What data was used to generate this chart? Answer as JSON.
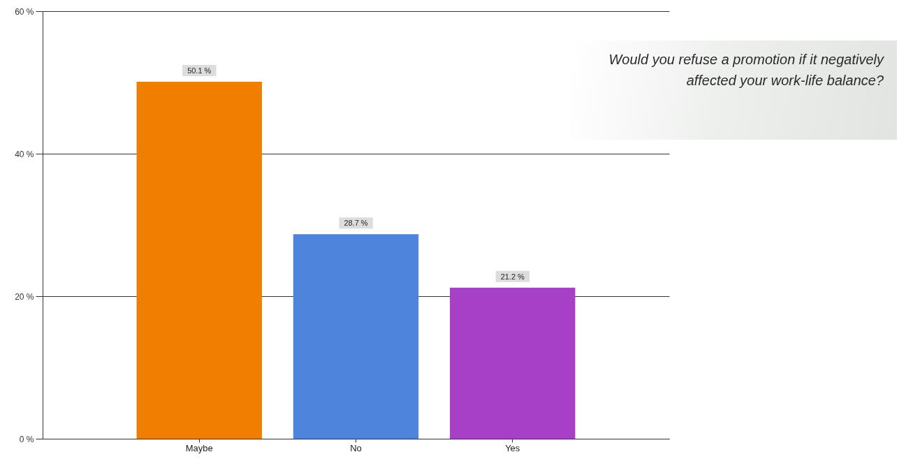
{
  "chart_data": {
    "type": "bar",
    "title": "Would you refuse a promotion if it negatively affected your work-life balance?",
    "categories": [
      "Maybe",
      "No",
      "Yes"
    ],
    "values": [
      50.1,
      28.7,
      21.2
    ],
    "colors": [
      "#f07f00",
      "#4f84dc",
      "#a740c4"
    ],
    "value_labels": [
      "50.1 %",
      "28.7 %",
      "21.2 %"
    ],
    "ylim": [
      0,
      60
    ],
    "yticks": [
      {
        "value": 0,
        "label": "0 %"
      },
      {
        "value": 20,
        "label": "20 %"
      },
      {
        "value": 40,
        "label": "40 %"
      },
      {
        "value": 60,
        "label": "60 %"
      }
    ],
    "grid": "y"
  }
}
